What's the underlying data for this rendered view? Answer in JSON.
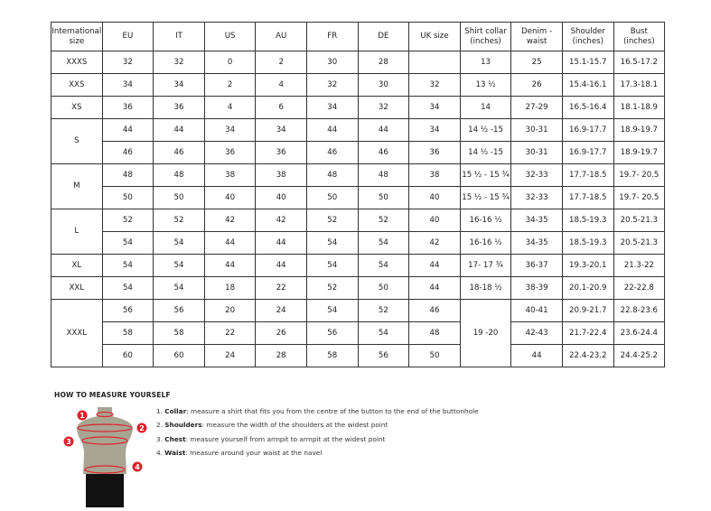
{
  "table": {
    "headers": [
      "International size",
      "EU",
      "IT",
      "US",
      "AU",
      "FR",
      "DE",
      "UK size",
      "Shirt collar (inches)",
      "Denim - waist",
      "Shoulder (inches)",
      "Bust (inches)"
    ],
    "groups": [
      {
        "size": "XXXS",
        "rows": [
          [
            "32",
            "32",
            "0",
            "2",
            "30",
            "28",
            "",
            "13",
            "25",
            "15.1-15.7",
            "16.5-17.2"
          ]
        ]
      },
      {
        "size": "XXS",
        "rows": [
          [
            "34",
            "34",
            "2",
            "4",
            "32",
            "30",
            "32",
            "13 ½",
            "26",
            "15.4-16.1",
            "17.3-18.1"
          ]
        ]
      },
      {
        "size": "XS",
        "rows": [
          [
            "36",
            "36",
            "4",
            "6",
            "34",
            "32",
            "34",
            "14",
            "27-29",
            "16.5-16.4",
            "18.1-18.9"
          ]
        ]
      },
      {
        "size": "S",
        "rows": [
          [
            "44",
            "44",
            "34",
            "34",
            "44",
            "44",
            "34",
            "14 ½ -15",
            "30-31",
            "16.9-17.7",
            "18.9-19.7"
          ],
          [
            "46",
            "46",
            "36",
            "36",
            "46",
            "46",
            "36",
            "14 ½ -15",
            "30-31",
            "16.9-17.7",
            "18.9-19.7"
          ]
        ]
      },
      {
        "size": "M",
        "rows": [
          [
            "48",
            "48",
            "38",
            "38",
            "48",
            "48",
            "38",
            "15 ½ - 15 ¾",
            "32-33",
            "17.7-18.5",
            "19.7- 20.5"
          ],
          [
            "50",
            "50",
            "40",
            "40",
            "50",
            "50",
            "40",
            "15 ½ - 15 ¾",
            "32-33",
            "17.7-18.5",
            "19.7- 20.5"
          ]
        ]
      },
      {
        "size": "L",
        "rows": [
          [
            "52",
            "52",
            "42",
            "42",
            "52",
            "52",
            "40",
            "16-16 ½",
            "34-35",
            "18.5-19.3",
            "20.5-21.3"
          ],
          [
            "54",
            "54",
            "44",
            "44",
            "54",
            "54",
            "42",
            "16-16 ½",
            "34-35",
            "18.5-19.3",
            "20.5-21.3"
          ]
        ]
      },
      {
        "size": "XL",
        "rows": [
          [
            "54",
            "54",
            "44",
            "44",
            "54",
            "54",
            "44",
            "17- 17 ¾",
            "36-37",
            "19.3-20.1",
            "21.3-22"
          ]
        ]
      },
      {
        "size": "XXL",
        "rows": [
          [
            "54",
            "54",
            "18",
            "22",
            "52",
            "50",
            "44",
            "18-18 ½",
            "38-39",
            "20.1-20.9",
            "22-22.8"
          ]
        ]
      },
      {
        "size": "XXXL",
        "merged_collar": "19 -20",
        "rows": [
          [
            "56",
            "56",
            "20",
            "24",
            "54",
            "52",
            "46",
            null,
            "40-41",
            "20.9-21.7",
            "22.8-23.6"
          ],
          [
            "58",
            "58",
            "22",
            "26",
            "56",
            "54",
            "48",
            null,
            "42-43",
            "21.7-22.4",
            "23.6-24.4"
          ],
          [
            "60",
            "60",
            "24",
            "28",
            "58",
            "56",
            "50",
            null,
            "44",
            "22.4-23.2",
            "24.4-25.2"
          ]
        ]
      }
    ]
  },
  "howto": {
    "title": "HOW TO MEASURE YOURSELF",
    "markers": [
      "1",
      "2",
      "3",
      "4"
    ],
    "steps": [
      {
        "num": "1.",
        "term": "Collar",
        "text": ": measure a shirt that fits you from the centre of the button to the end of the buttonhole"
      },
      {
        "num": "2.",
        "term": "Shoulders",
        "text": ": measure the width of the shoulders at the widest point"
      },
      {
        "num": "3.",
        "term": "Chest",
        "text": ": measure yourself from armpit to armpit at the widest point"
      },
      {
        "num": "4.",
        "term": "Waist",
        "text": ": measure around your waist at the navel"
      }
    ],
    "colors": {
      "accent": "#e0202e",
      "body": "#a8a592",
      "shorts": "#111111"
    }
  }
}
